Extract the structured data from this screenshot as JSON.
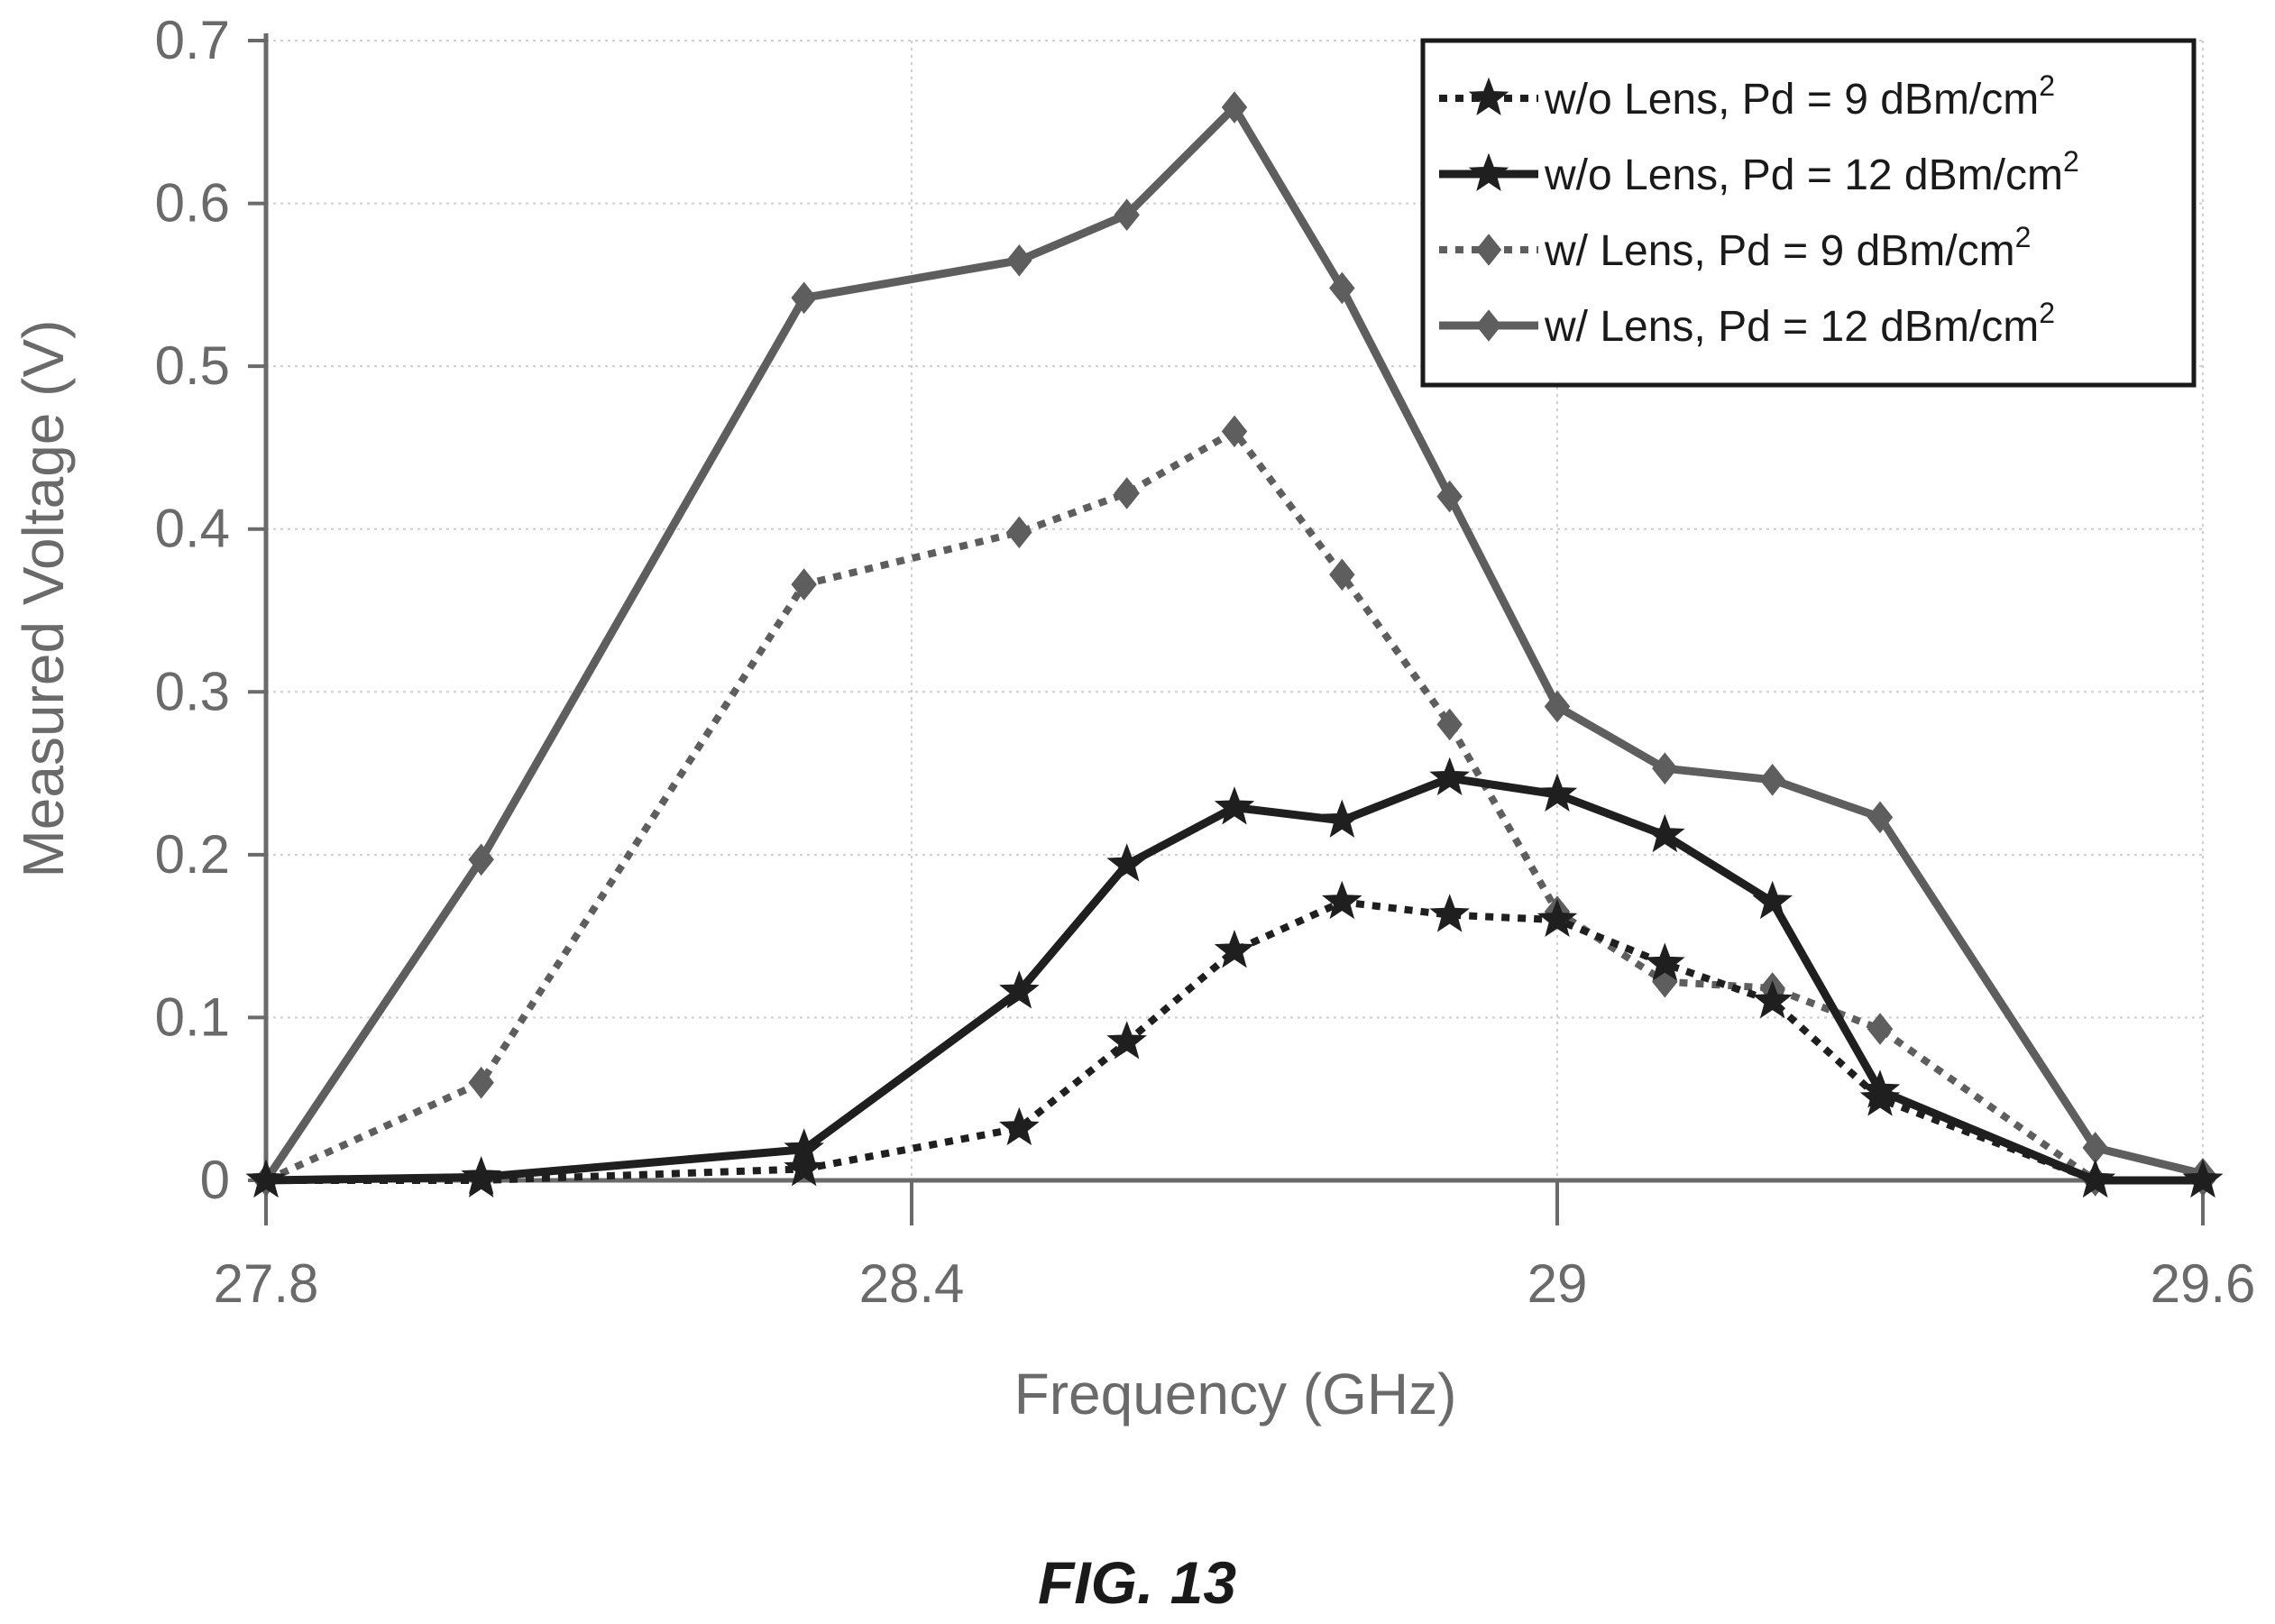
{
  "chart_data": {
    "type": "line",
    "xlabel": "Frequency (GHz)",
    "ylabel": "Measured Voltage (V)",
    "xlim": [
      27.8,
      29.6
    ],
    "ylim": [
      0,
      0.7
    ],
    "x_ticks": [
      "27.8",
      "28.4",
      "29",
      "29.6"
    ],
    "x_tick_values": [
      27.8,
      28.4,
      29.0,
      29.6
    ],
    "y_ticks": [
      "0",
      "0.1",
      "0.2",
      "0.3",
      "0.4",
      "0.5",
      "0.6",
      "0.7"
    ],
    "y_tick_values": [
      0,
      0.1,
      0.2,
      0.3,
      0.4,
      0.5,
      0.6,
      0.7
    ],
    "grid": true,
    "legend_position": "top-right",
    "series": [
      {
        "name": "w/o Lens, Pd = 9 dBm/cm",
        "name_superscript": "2",
        "line_style": "dotted",
        "marker": "star",
        "color": "#1f1f1f",
        "x": [
          27.8,
          28.0,
          28.3,
          28.5,
          28.6,
          28.7,
          28.8,
          28.9,
          29.0,
          29.1,
          29.2,
          29.3,
          29.5,
          29.6
        ],
        "y": [
          0,
          0,
          0.007,
          0.032,
          0.085,
          0.141,
          0.171,
          0.163,
          0.16,
          0.133,
          0.11,
          0.05,
          0,
          0
        ]
      },
      {
        "name": "w/o Lens, Pd = 12 dBm/cm",
        "name_superscript": "2",
        "line_style": "solid",
        "marker": "star",
        "color": "#1f1f1f",
        "x": [
          27.8,
          28.0,
          28.3,
          28.5,
          28.6,
          28.7,
          28.8,
          28.9,
          29.0,
          29.1,
          29.2,
          29.3,
          29.5,
          29.6
        ],
        "y": [
          0,
          0.002,
          0.019,
          0.116,
          0.194,
          0.229,
          0.221,
          0.247,
          0.237,
          0.212,
          0.171,
          0.055,
          0,
          0
        ]
      },
      {
        "name": "w/ Lens, Pd = 9 dBm/cm",
        "name_superscript": "2",
        "line_style": "dotted",
        "marker": "diamond",
        "color": "#5e5e5e",
        "x": [
          27.8,
          28.0,
          28.3,
          28.5,
          28.6,
          28.7,
          28.8,
          28.9,
          29.0,
          29.1,
          29.2,
          29.3,
          29.5,
          29.6
        ],
        "y": [
          0,
          0.06,
          0.366,
          0.398,
          0.422,
          0.46,
          0.372,
          0.28,
          0.165,
          0.122,
          0.118,
          0.093,
          0,
          0
        ]
      },
      {
        "name": "w/ Lens, Pd = 12 dBm/cm",
        "name_superscript": "2",
        "line_style": "solid",
        "marker": "diamond",
        "color": "#5e5e5e",
        "x": [
          27.8,
          28.0,
          28.3,
          28.5,
          28.6,
          28.7,
          28.8,
          28.9,
          29.0,
          29.1,
          29.2,
          29.3,
          29.5,
          29.6
        ],
        "y": [
          0,
          0.197,
          0.542,
          0.565,
          0.593,
          0.659,
          0.548,
          0.42,
          0.291,
          0.253,
          0.246,
          0.223,
          0.02,
          0.004
        ]
      }
    ]
  },
  "figure_caption": "FIG. 13"
}
